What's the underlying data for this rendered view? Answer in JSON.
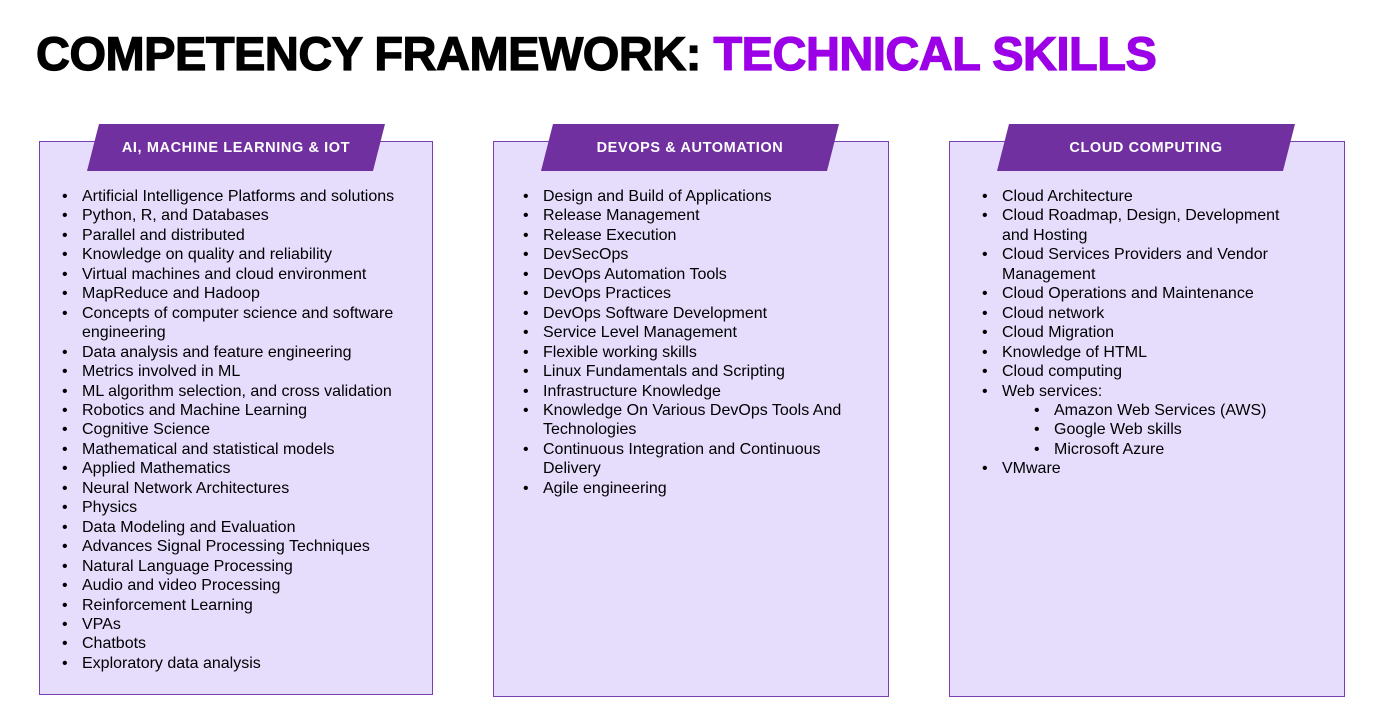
{
  "title": {
    "part1": "COMPETENCY FRAMEWORK: ",
    "part2": "TECHNICAL SKILLS"
  },
  "colors": {
    "accent": "#9b00e6",
    "tab": "#7030a0",
    "card_bg": "#e6dcfc",
    "card_border": "#7a3fb0"
  },
  "columns": [
    {
      "heading": "AI, MACHINE LEARNING & IOT",
      "items": [
        "Artificial Intelligence Platforms and solutions",
        "Python, R, and Databases",
        "Parallel and distributed",
        "Knowledge on quality and reliability",
        "Virtual machines and cloud environment",
        "MapReduce and Hadoop",
        "Concepts of computer science and software engineering",
        "Data analysis and feature engineering",
        "Metrics involved in ML",
        "ML algorithm selection, and cross validation",
        "Robotics and Machine Learning",
        "Cognitive Science",
        "Mathematical and statistical models",
        "Applied Mathematics",
        "Neural Network Architectures",
        "Physics",
        "Data Modeling and Evaluation",
        "Advances Signal Processing Techniques",
        "Natural Language Processing",
        "Audio and video Processing",
        "Reinforcement Learning",
        "VPAs",
        "Chatbots",
        "Exploratory data analysis"
      ]
    },
    {
      "heading": "DEVOPS & AUTOMATION",
      "items": [
        "Design and Build of Applications",
        "Release Management",
        "Release Execution",
        "DevSecOps",
        "DevOps Automation Tools",
        "DevOps Practices",
        "DevOps Software Development",
        "Service Level Management",
        "Flexible working skills",
        "Linux Fundamentals and Scripting",
        "Infrastructure Knowledge",
        "Knowledge On Various DevOps Tools And Technologies",
        "Continuous Integration and Continuous Delivery",
        "Agile engineering"
      ]
    },
    {
      "heading": "CLOUD COMPUTING",
      "items": [
        "Cloud Architecture",
        "Cloud Roadmap, Design, Development and Hosting",
        "Cloud Services Providers and Vendor Management",
        "Cloud Operations and Maintenance",
        "Cloud network",
        "Cloud Migration",
        "Knowledge of HTML",
        "Cloud computing",
        "Web services:",
        "VMware"
      ],
      "web_services": [
        "Amazon Web Services (AWS)",
        "Google Web skills",
        "Microsoft Azure"
      ]
    }
  ]
}
